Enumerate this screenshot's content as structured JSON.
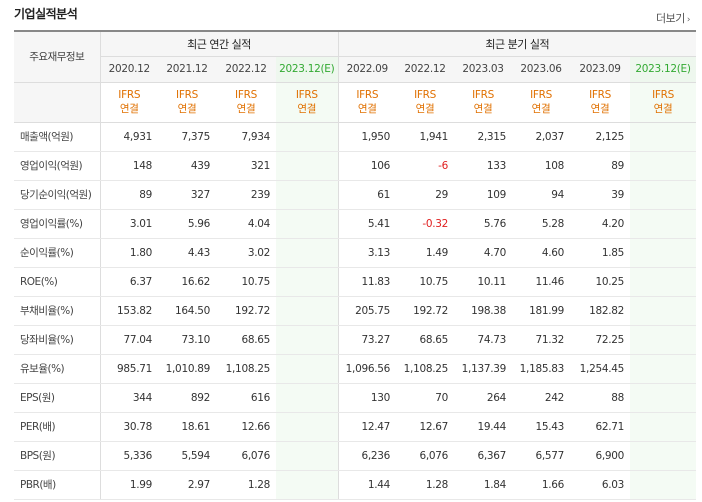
{
  "title": "기업실적분석",
  "more_label": "더보기",
  "header": {
    "corner_label": "주요재무정보",
    "annual_label": "최근 연간 실적",
    "quarter_label": "최근 분기 실적",
    "annual_periods": [
      "2020.12",
      "2021.12",
      "2022.12",
      "2023.12(E)"
    ],
    "quarter_periods": [
      "2022.09",
      "2022.12",
      "2023.03",
      "2023.06",
      "2023.09",
      "2023.12(E)"
    ],
    "ifrs_line1": "IFRS",
    "ifrs_line2": "연결"
  },
  "rows": [
    {
      "label": "매출액(억원)",
      "annual": [
        "4,931",
        "7,375",
        "7,934",
        ""
      ],
      "quarter": [
        "1,950",
        "1,941",
        "2,315",
        "2,037",
        "2,125",
        ""
      ]
    },
    {
      "label": "영업이익(억원)",
      "annual": [
        "148",
        "439",
        "321",
        ""
      ],
      "quarter": [
        "106",
        "-6",
        "133",
        "108",
        "89",
        ""
      ]
    },
    {
      "label": "당기순이익(억원)",
      "annual": [
        "89",
        "327",
        "239",
        ""
      ],
      "quarter": [
        "61",
        "29",
        "109",
        "94",
        "39",
        ""
      ]
    },
    {
      "label": "영업이익률(%)",
      "annual": [
        "3.01",
        "5.96",
        "4.04",
        ""
      ],
      "quarter": [
        "5.41",
        "-0.32",
        "5.76",
        "5.28",
        "4.20",
        ""
      ]
    },
    {
      "label": "순이익률(%)",
      "annual": [
        "1.80",
        "4.43",
        "3.02",
        ""
      ],
      "quarter": [
        "3.13",
        "1.49",
        "4.70",
        "4.60",
        "1.85",
        ""
      ]
    },
    {
      "label": "ROE(%)",
      "annual": [
        "6.37",
        "16.62",
        "10.75",
        ""
      ],
      "quarter": [
        "11.83",
        "10.75",
        "10.11",
        "11.46",
        "10.25",
        ""
      ]
    },
    {
      "label": "부채비율(%)",
      "annual": [
        "153.82",
        "164.50",
        "192.72",
        ""
      ],
      "quarter": [
        "205.75",
        "192.72",
        "198.38",
        "181.99",
        "182.82",
        ""
      ]
    },
    {
      "label": "당좌비율(%)",
      "annual": [
        "77.04",
        "73.10",
        "68.65",
        ""
      ],
      "quarter": [
        "73.27",
        "68.65",
        "74.73",
        "71.32",
        "72.25",
        ""
      ]
    },
    {
      "label": "유보율(%)",
      "annual": [
        "985.71",
        "1,010.89",
        "1,108.25",
        ""
      ],
      "quarter": [
        "1,096.56",
        "1,108.25",
        "1,137.39",
        "1,185.83",
        "1,254.45",
        ""
      ]
    },
    {
      "label": "EPS(원)",
      "annual": [
        "344",
        "892",
        "616",
        ""
      ],
      "quarter": [
        "130",
        "70",
        "264",
        "242",
        "88",
        ""
      ]
    },
    {
      "label": "PER(배)",
      "annual": [
        "30.78",
        "18.61",
        "12.66",
        ""
      ],
      "quarter": [
        "12.47",
        "12.67",
        "19.44",
        "15.43",
        "62.71",
        ""
      ]
    },
    {
      "label": "BPS(원)",
      "annual": [
        "5,336",
        "5,594",
        "6,076",
        ""
      ],
      "quarter": [
        "6,236",
        "6,076",
        "6,367",
        "6,577",
        "6,900",
        ""
      ]
    },
    {
      "label": "PBR(배)",
      "annual": [
        "1.99",
        "2.97",
        "1.28",
        ""
      ],
      "quarter": [
        "1.44",
        "1.28",
        "1.84",
        "1.66",
        "6.03",
        ""
      ]
    }
  ]
}
